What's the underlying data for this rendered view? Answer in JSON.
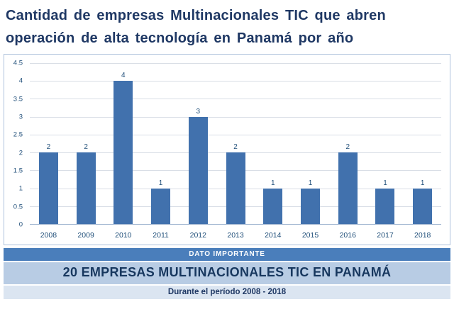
{
  "title": {
    "line1": "Cantidad de empresas Multinacionales TIC que abren",
    "line2": "operación de alta tecnología en Panamá por año"
  },
  "chart_data": {
    "type": "bar",
    "title": "Cantidad de empresas Multinacionales TIC que abren operación de alta tecnología en Panamá por año",
    "categories": [
      "2008",
      "2009",
      "2010",
      "2011",
      "2012",
      "2013",
      "2014",
      "2015",
      "2016",
      "2017",
      "2018"
    ],
    "values": [
      2,
      2,
      4,
      1,
      3,
      2,
      1,
      1,
      2,
      1,
      1
    ],
    "xlabel": "",
    "ylabel": "",
    "ylim": [
      0,
      4.5
    ],
    "yticks": [
      "0",
      "0.5",
      "1",
      "1.5",
      "2",
      "2.5",
      "3",
      "3.5",
      "4",
      "4.5"
    ],
    "grid": true,
    "legend": false,
    "data_labels": true,
    "bar_color": "#4171ad",
    "label_color": "#1f4e79"
  },
  "footer": {
    "banner": "DATO IMPORTANTE",
    "headline": "20 EMPRESAS MULTINACIONALES TIC EN PANAMÁ",
    "subtitle": "Durante el período 2008 - 2018"
  },
  "colors": {
    "title_text": "#1f3864",
    "axis_text": "#1f4e79",
    "bar": "#4171ad",
    "banner_bg": "#4a7ebb",
    "headline_bg": "#b8cce4",
    "subtitle_bg": "#dbe5f1",
    "chart_border": "#aec2dc"
  }
}
